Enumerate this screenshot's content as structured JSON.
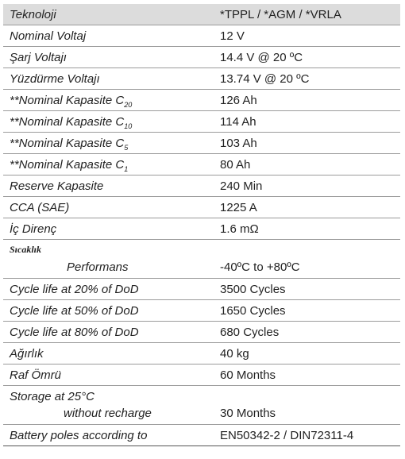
{
  "table": {
    "rows": [
      {
        "label": "Teknoloji",
        "value": "*TPPL / *AGM / *VRLA"
      },
      {
        "label": "Nominal Voltaj",
        "value": "12 V"
      },
      {
        "label": "Şarj Voltajı",
        "value": "14.4 V @ 20 ºC"
      },
      {
        "label": "Yüzdürme Voltajı",
        "value": "13.74 V @ 20 ºC"
      },
      {
        "label": "**Nominal Kapasite C",
        "sub": "20",
        "value": "126 Ah"
      },
      {
        "label": "**Nominal Kapasite C",
        "sub": "10",
        "value": "114 Ah"
      },
      {
        "label": "**Nominal Kapasite C",
        "sub": "5",
        "value": "103 Ah"
      },
      {
        "label": "**Nominal Kapasite C",
        "sub": "1",
        "value": "80 Ah"
      },
      {
        "label": "Reserve Kapasite",
        "value": "240 Min"
      },
      {
        "label": "CCA (SAE)",
        "value": "1225 A"
      },
      {
        "label": "İç Direnç",
        "value": "1.6 mΩ"
      },
      {
        "label": "Sıcaklık",
        "label_line2": "Performans",
        "value": "-40ºC to +80ºC"
      },
      {
        "label": "Cycle life at 20% of DoD",
        "value": "3500 Cycles"
      },
      {
        "label": "Cycle life at 50% of DoD",
        "value": "1650 Cycles"
      },
      {
        "label": "Cycle life at 80% of DoD",
        "value": "680 Cycles"
      },
      {
        "label": "Ağırlık",
        "value": "40 kg"
      },
      {
        "label": "Raf Ömrü",
        "value": "60 Months"
      },
      {
        "label": "Storage at 25°C",
        "label_line2": "without recharge",
        "value": "30 Months"
      },
      {
        "label": "Battery poles according to",
        "value": "EN50342-2 / DIN72311-4"
      }
    ]
  }
}
